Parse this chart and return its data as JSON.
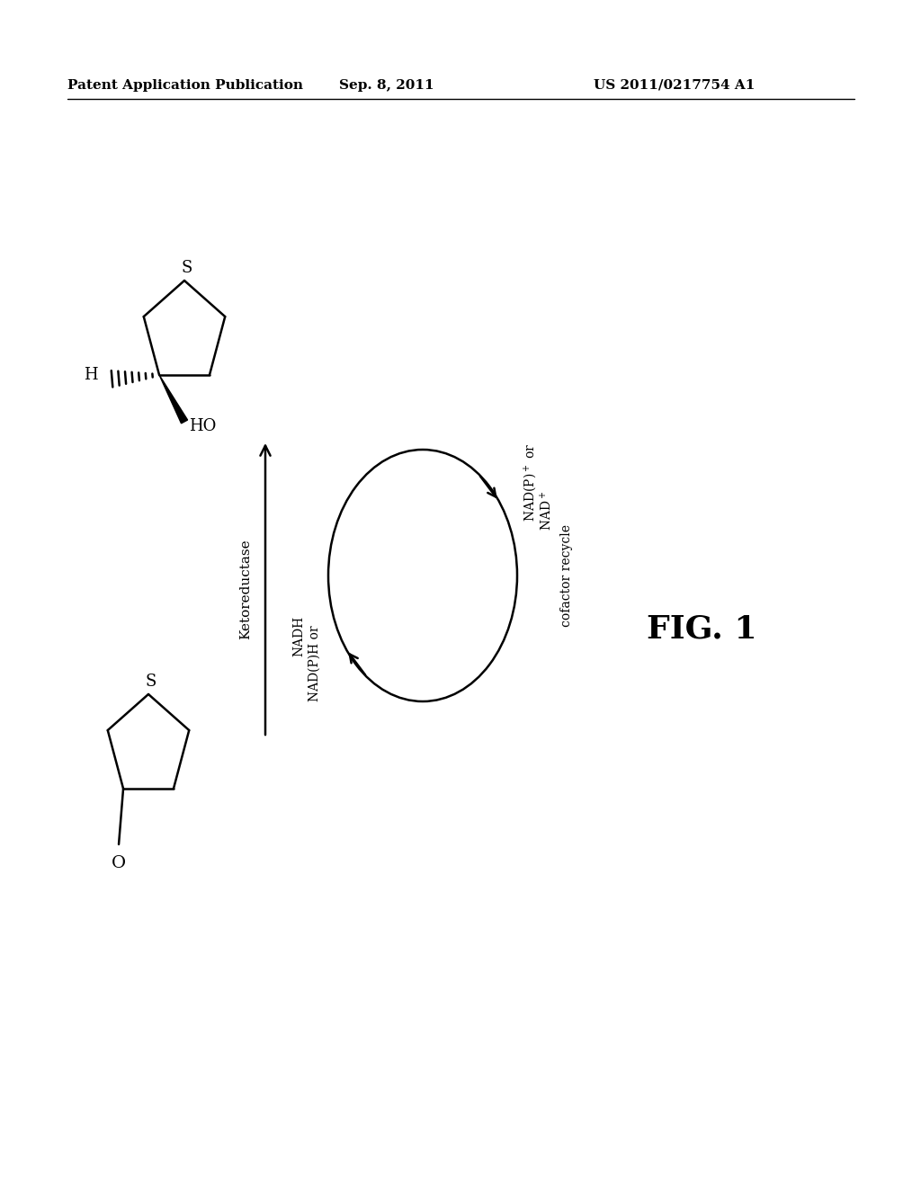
{
  "bg_color": "#ffffff",
  "header_left": "Patent Application Publication",
  "header_mid": "Sep. 8, 2011",
  "header_right": "US 2011/0217754 A1",
  "fig_label": "FIG. 1",
  "ketoreductase_label": "Ketoreductase",
  "nadp_label": "NAD(P)$^+$ or",
  "nad_label": "NAD$^+$",
  "nadph_label": "NAD(P)H or",
  "nadh_label": "NADH",
  "cofactor_label": "cofactor recycle"
}
